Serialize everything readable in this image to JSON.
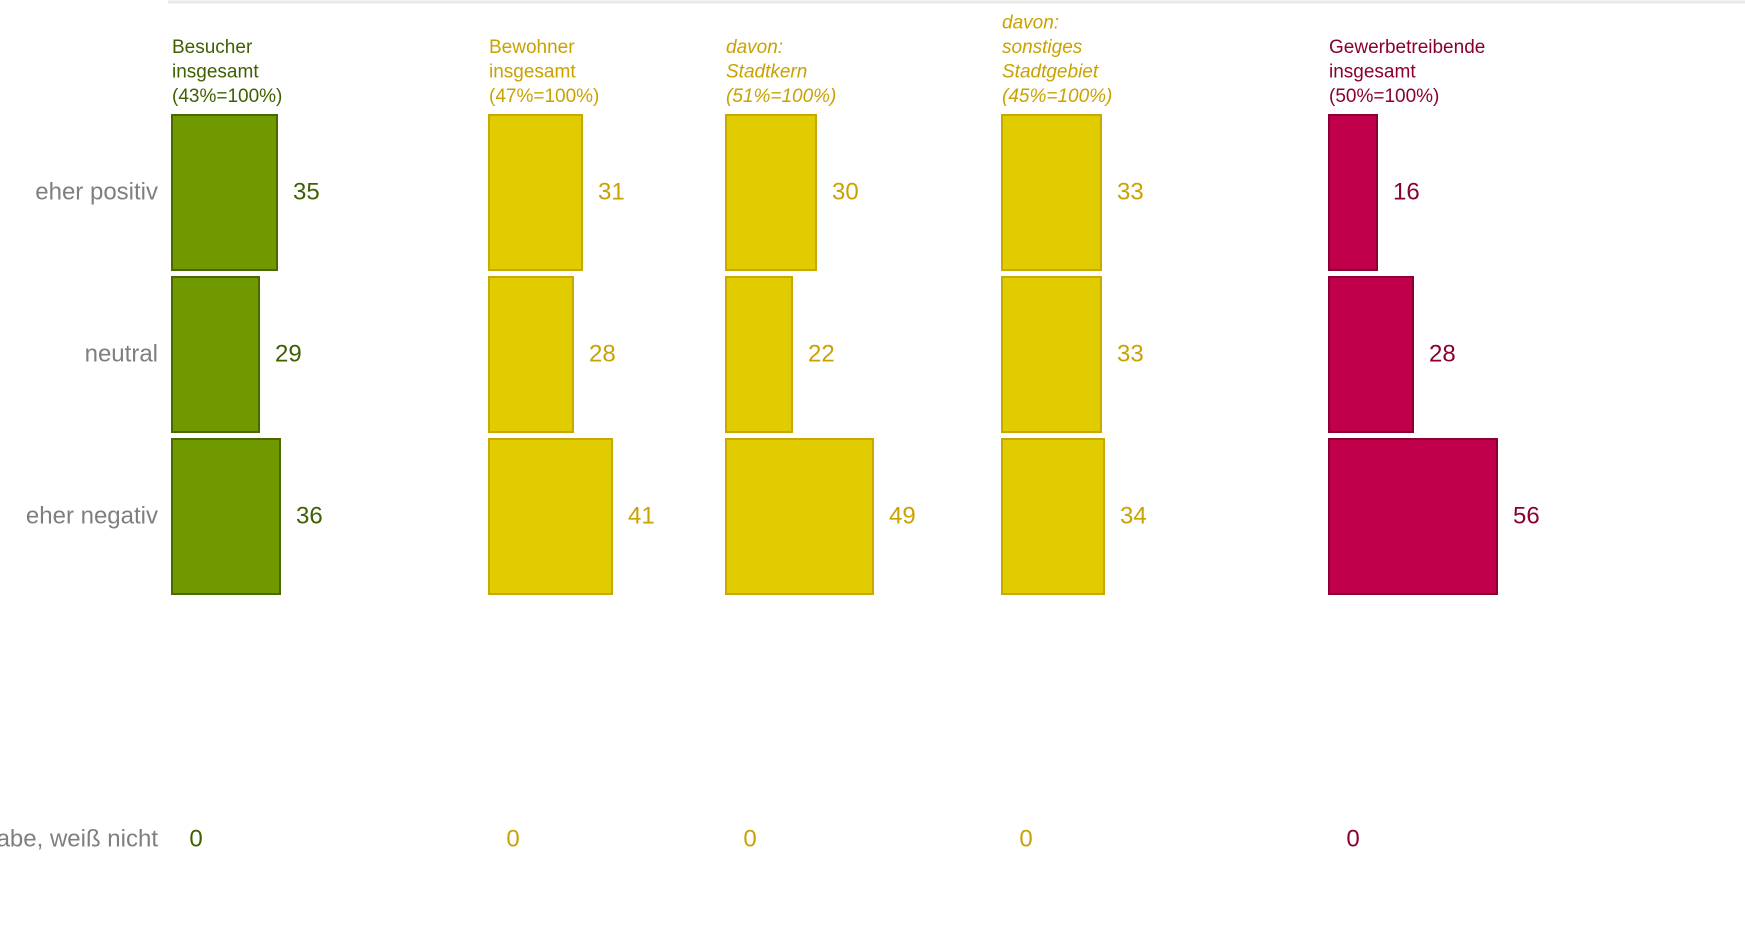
{
  "chart_data": {
    "type": "bar",
    "orientation": "horizontal",
    "categories": [
      "eher positiv",
      "neutral",
      "eher negativ",
      "keine Angabe, weiß nicht"
    ],
    "grid": false,
    "series": [
      {
        "name": "Besucher insgesamt (43%=100%)",
        "label_lines": [
          "Besucher",
          "insgesamt",
          "(43%=100%)"
        ],
        "italic": false,
        "fill": "#709900",
        "stroke": "#4a6a00",
        "text_color": "#3f6000",
        "values": [
          35,
          29,
          36,
          0
        ],
        "value_labels": [
          "35",
          "29",
          "36",
          "0"
        ]
      },
      {
        "name": "Bewohner insgesamt (47%=100%)",
        "label_lines": [
          "Bewohner",
          "insgesamt",
          "(47%=100%)"
        ],
        "italic": false,
        "fill": "#e0cc00",
        "stroke": "#c9a800",
        "text_color": "#c9a200",
        "values": [
          31,
          28,
          41,
          0
        ],
        "value_labels": [
          "31",
          "28",
          "41",
          "0"
        ]
      },
      {
        "name": "davon: Stadtkern (51%=100%)",
        "label_lines": [
          "davon:",
          "Stadtkern",
          "(51%=100%)"
        ],
        "italic": true,
        "fill": "#e0cc00",
        "stroke": "#c9a800",
        "text_color": "#c9a200",
        "values": [
          30,
          22,
          49,
          0
        ],
        "value_labels": [
          "30",
          "22",
          "49",
          "0"
        ]
      },
      {
        "name": "davon: sonstiges Stadtgebiet (45%=100%)",
        "label_lines": [
          "davon:",
          "sonstiges",
          "Stadtgebiet",
          "(45%=100%)"
        ],
        "italic": true,
        "fill": "#e0cc00",
        "stroke": "#c9a800",
        "text_color": "#c9a200",
        "values": [
          33,
          33,
          34,
          0
        ],
        "value_labels": [
          "33",
          "33",
          "34",
          "0"
        ]
      },
      {
        "name": "Gewerbetreibende insgesamt (50%=100%)",
        "label_lines": [
          "Gewerbetreibende",
          "insgesamt",
          "(50%=100%)"
        ],
        "italic": false,
        "fill": "#c0004a",
        "stroke": "#8a0033",
        "text_color": "#8a0033",
        "values": [
          16,
          28,
          56,
          0
        ],
        "value_labels": [
          "16",
          "28",
          "56",
          "0"
        ]
      }
    ]
  }
}
